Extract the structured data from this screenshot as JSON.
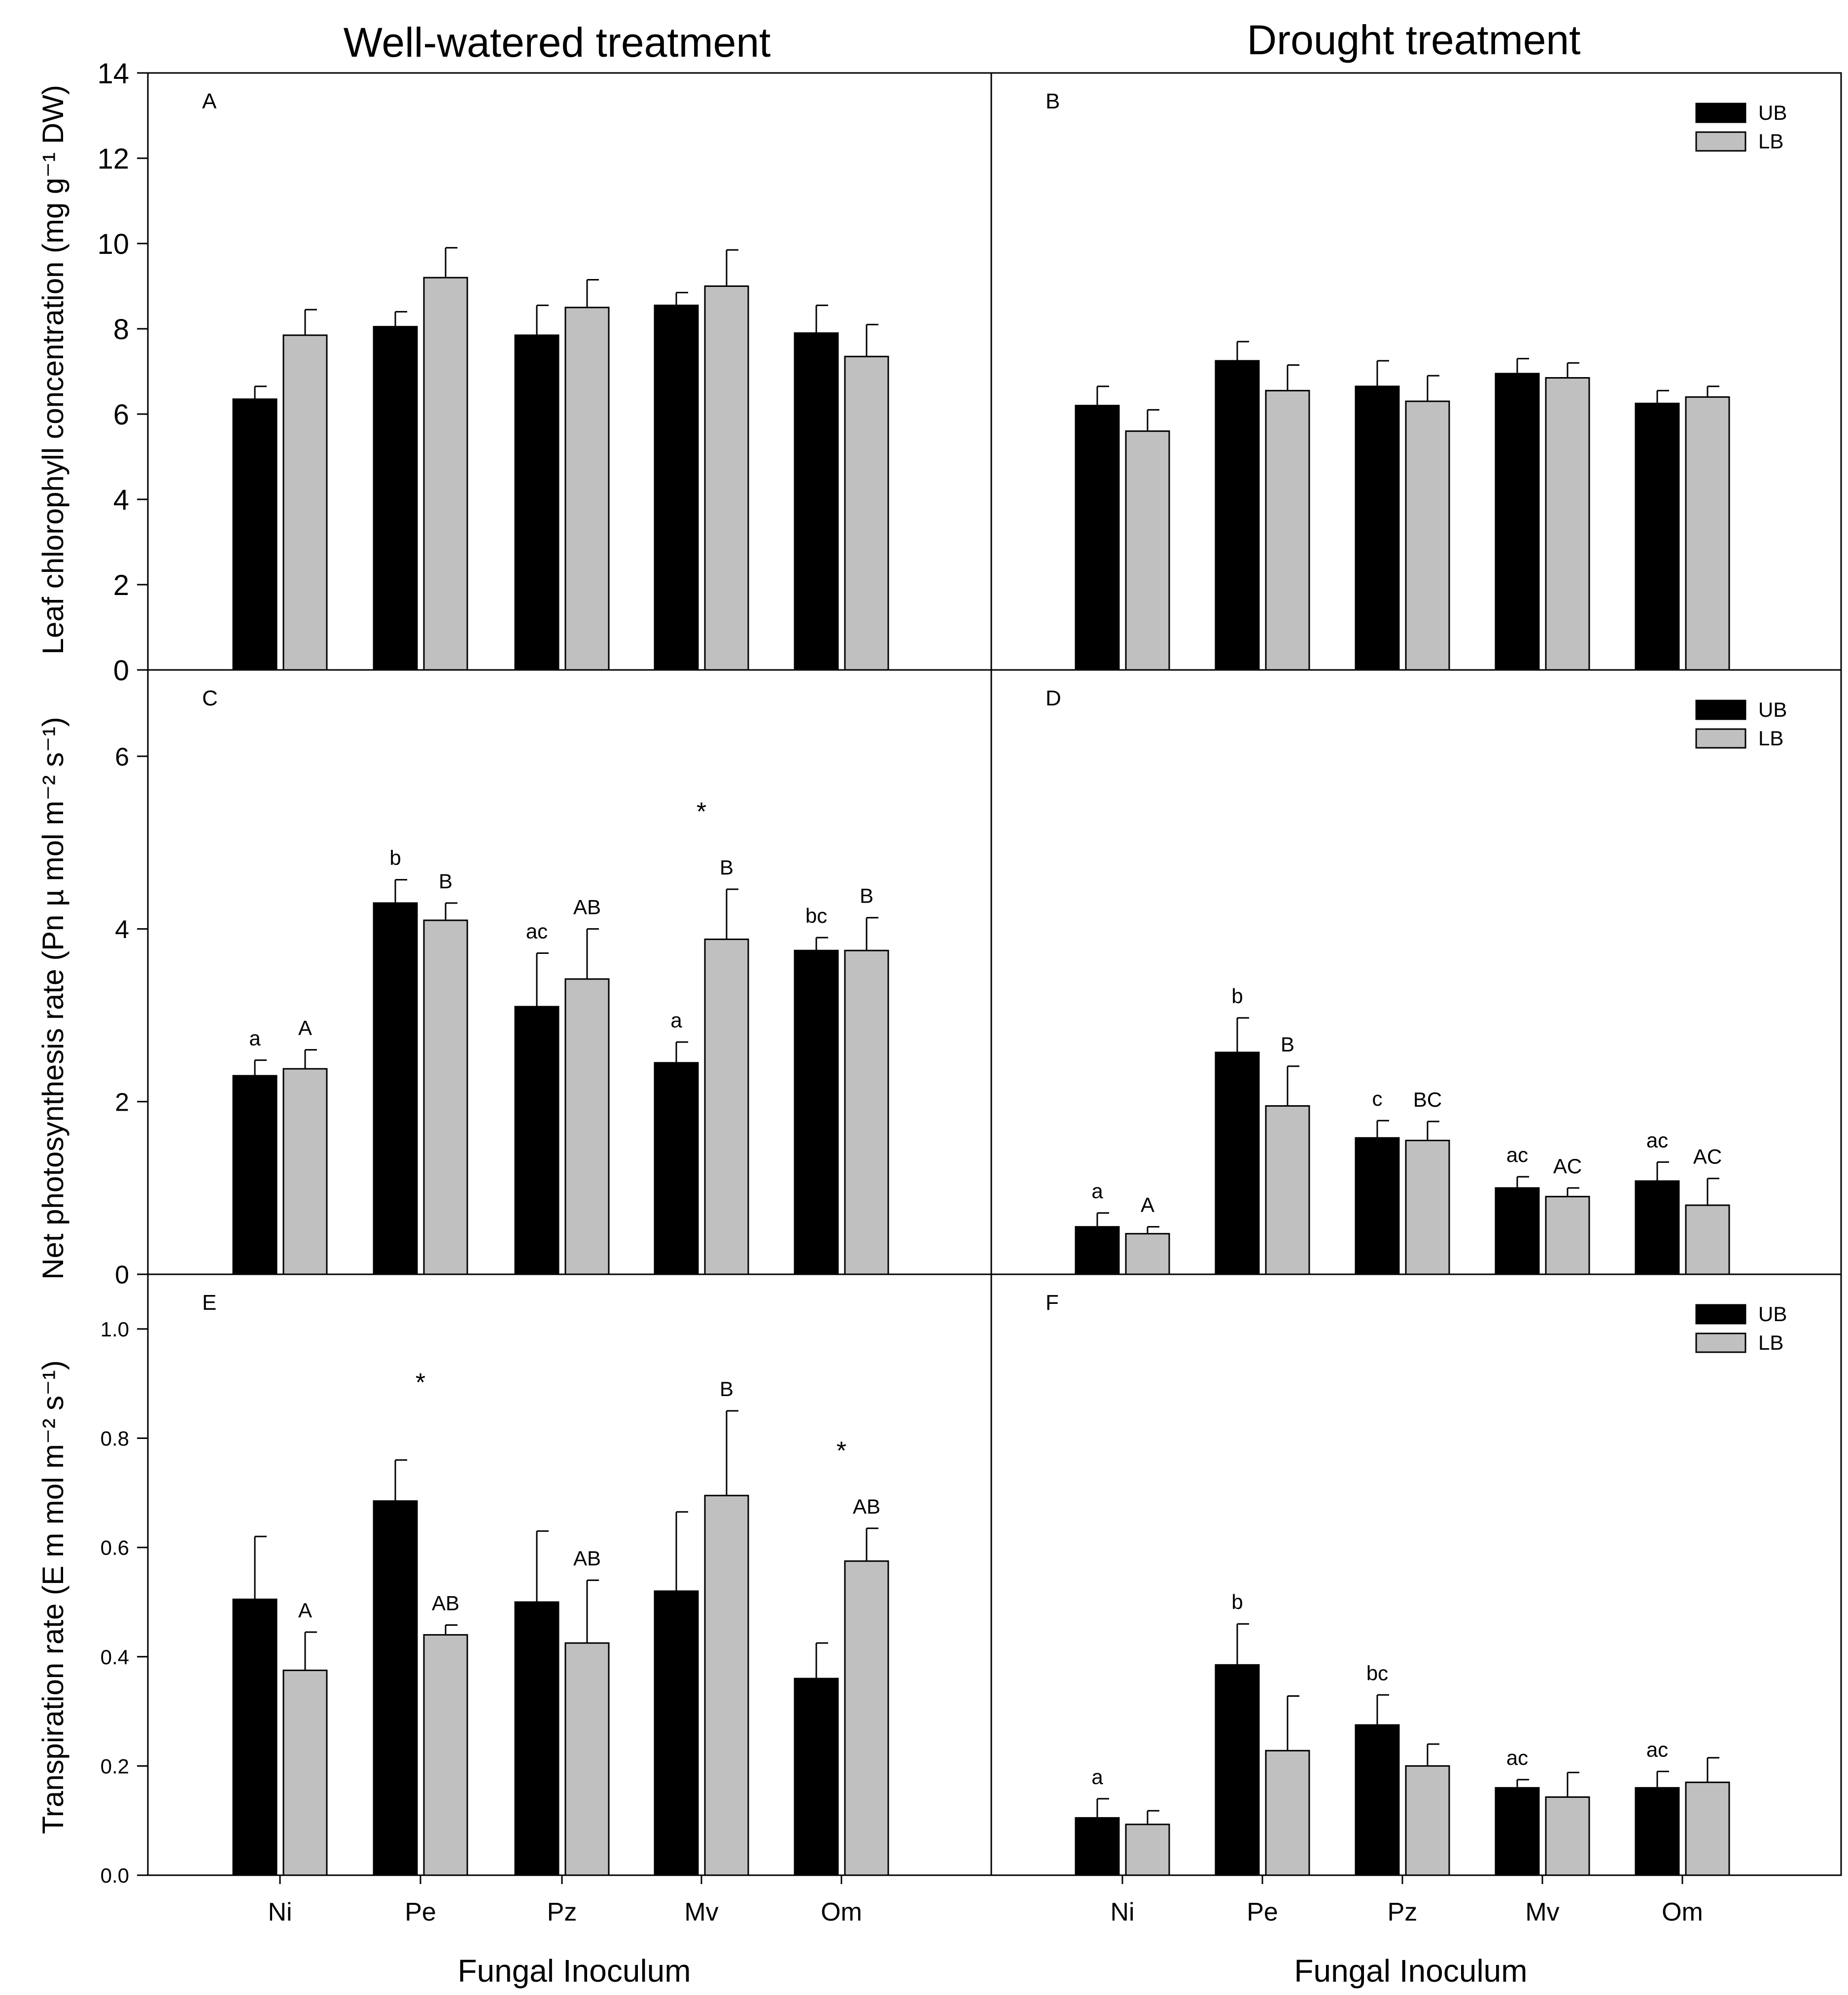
{
  "figure": {
    "col_titles": [
      "Well-watered treatment",
      "Drought treatment"
    ],
    "x_axis_label": "Fungal Inoculum",
    "legend_labels": [
      "UB",
      "LB"
    ]
  },
  "chart_data": [
    {
      "panel": "A",
      "type": "bar",
      "ylabel": "Leaf chlorophyll concentration (mg g⁻¹ DW)",
      "ylim": [
        0,
        14
      ],
      "yticks": [
        "0",
        "2",
        "4",
        "6",
        "8",
        "10",
        "12",
        "14"
      ],
      "categories": [
        "Ni",
        "Pe",
        "Pz",
        "Mv",
        "Om"
      ],
      "series": [
        {
          "name": "UB",
          "color": "#000000",
          "values": [
            6.35,
            8.05,
            7.85,
            8.55,
            7.9
          ],
          "errors": [
            0.3,
            0.35,
            0.7,
            0.3,
            0.65
          ],
          "labels": [
            "",
            "",
            "",
            "",
            ""
          ]
        },
        {
          "name": "LB",
          "color": "#c0c0c0",
          "values": [
            7.85,
            9.2,
            8.5,
            9.0,
            7.35
          ],
          "errors": [
            0.6,
            0.7,
            0.65,
            0.85,
            0.75
          ],
          "labels": [
            "",
            "",
            "",
            "",
            ""
          ]
        }
      ],
      "stars": [
        "",
        "",
        "",
        "",
        ""
      ],
      "legend": false
    },
    {
      "panel": "B",
      "type": "bar",
      "ylim": [
        0,
        14
      ],
      "categories": [
        "Ni",
        "Pe",
        "Pz",
        "Mv",
        "Om"
      ],
      "series": [
        {
          "name": "UB",
          "color": "#000000",
          "values": [
            6.2,
            7.25,
            6.65,
            6.95,
            6.25
          ],
          "errors": [
            0.45,
            0.45,
            0.6,
            0.35,
            0.3
          ],
          "labels": [
            "",
            "",
            "",
            "",
            ""
          ]
        },
        {
          "name": "LB",
          "color": "#c0c0c0",
          "values": [
            5.6,
            6.55,
            6.3,
            6.85,
            6.4
          ],
          "errors": [
            0.5,
            0.6,
            0.6,
            0.35,
            0.25
          ],
          "labels": [
            "",
            "",
            "",
            "",
            ""
          ]
        }
      ],
      "stars": [
        "",
        "",
        "",
        "",
        ""
      ],
      "legend": true
    },
    {
      "panel": "C",
      "type": "bar",
      "ylabel": "Net photosynthesis rate (Pn µ mol m⁻² s⁻¹)",
      "ylim": [
        0,
        7
      ],
      "yticks": [
        "0",
        "2",
        "4",
        "6"
      ],
      "categories": [
        "Ni",
        "Pe",
        "Pz",
        "Mv",
        "Om"
      ],
      "series": [
        {
          "name": "UB",
          "color": "#000000",
          "values": [
            2.3,
            4.3,
            3.1,
            2.45,
            3.75
          ],
          "errors": [
            0.18,
            0.27,
            0.62,
            0.24,
            0.15
          ],
          "labels": [
            "a",
            "b",
            "ac",
            "a",
            "bc"
          ]
        },
        {
          "name": "LB",
          "color": "#c0c0c0",
          "values": [
            2.38,
            4.1,
            3.42,
            3.88,
            3.75
          ],
          "errors": [
            0.22,
            0.2,
            0.58,
            0.58,
            0.38
          ],
          "labels": [
            "A",
            "B",
            "AB",
            "B",
            "B"
          ]
        }
      ],
      "stars": [
        "",
        "",
        "",
        "*",
        ""
      ],
      "legend": false
    },
    {
      "panel": "D",
      "type": "bar",
      "ylim": [
        0,
        7
      ],
      "categories": [
        "Ni",
        "Pe",
        "Pz",
        "Mv",
        "Om"
      ],
      "series": [
        {
          "name": "UB",
          "color": "#000000",
          "values": [
            0.55,
            2.57,
            1.58,
            1.0,
            1.08
          ],
          "errors": [
            0.16,
            0.4,
            0.2,
            0.13,
            0.22
          ],
          "labels": [
            "a",
            "b",
            "c",
            "ac",
            "ac"
          ]
        },
        {
          "name": "LB",
          "color": "#c0c0c0",
          "values": [
            0.47,
            1.95,
            1.55,
            0.9,
            0.8
          ],
          "errors": [
            0.08,
            0.46,
            0.22,
            0.1,
            0.31
          ],
          "labels": [
            "A",
            "B",
            "BC",
            "AC",
            "AC"
          ]
        }
      ],
      "stars": [
        "",
        "",
        "",
        "",
        ""
      ],
      "legend": true
    },
    {
      "panel": "E",
      "type": "bar",
      "ylabel": "Transpiration rate (E m mol m⁻² s⁻¹)",
      "ylim": [
        0,
        1.1
      ],
      "yticks": [
        "0.0",
        "0.2",
        "0.4",
        "0.6",
        "0.8",
        "1.0"
      ],
      "categories": [
        "Ni",
        "Pe",
        "Pz",
        "Mv",
        "Om"
      ],
      "series": [
        {
          "name": "UB",
          "color": "#000000",
          "values": [
            0.505,
            0.685,
            0.5,
            0.52,
            0.36
          ],
          "errors": [
            0.115,
            0.075,
            0.13,
            0.145,
            0.065
          ],
          "labels": [
            "",
            "",
            "",
            "",
            ""
          ]
        },
        {
          "name": "LB",
          "color": "#c0c0c0",
          "values": [
            0.375,
            0.44,
            0.425,
            0.695,
            0.575
          ],
          "errors": [
            0.07,
            0.018,
            0.115,
            0.155,
            0.06
          ],
          "labels": [
            "A",
            "AB",
            "AB",
            "B",
            "AB"
          ]
        }
      ],
      "stars": [
        "",
        "*",
        "",
        "",
        "*"
      ],
      "legend": false
    },
    {
      "panel": "F",
      "type": "bar",
      "ylim": [
        0,
        1.1
      ],
      "categories": [
        "Ni",
        "Pe",
        "Pz",
        "Mv",
        "Om"
      ],
      "series": [
        {
          "name": "UB",
          "color": "#000000",
          "values": [
            0.105,
            0.385,
            0.275,
            0.16,
            0.16
          ],
          "errors": [
            0.035,
            0.075,
            0.055,
            0.015,
            0.03
          ],
          "labels": [
            "a",
            "b",
            "bc",
            "ac",
            "ac"
          ]
        },
        {
          "name": "LB",
          "color": "#c0c0c0",
          "values": [
            0.093,
            0.228,
            0.2,
            0.143,
            0.17
          ],
          "errors": [
            0.025,
            0.1,
            0.04,
            0.045,
            0.045
          ],
          "labels": [
            "",
            "",
            "",
            "",
            ""
          ]
        }
      ],
      "stars": [
        "",
        "",
        "",
        "",
        ""
      ],
      "legend": true
    }
  ]
}
